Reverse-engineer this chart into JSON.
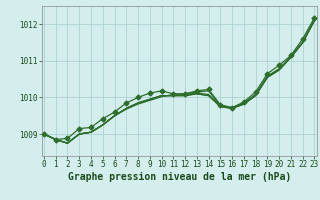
{
  "title": "Graphe pression niveau de la mer (hPa)",
  "background_color": "#d4eeed",
  "grid_color": "#a8cccc",
  "line_color": "#2d6e2d",
  "ylabel_ticks": [
    1009,
    1010,
    1011,
    1012
  ],
  "xlabel_ticks": [
    0,
    1,
    2,
    3,
    4,
    5,
    6,
    7,
    8,
    9,
    10,
    11,
    12,
    13,
    14,
    15,
    16,
    17,
    18,
    19,
    20,
    21,
    22,
    23
  ],
  "xlim": [
    -0.2,
    23.2
  ],
  "ylim": [
    1008.4,
    1012.5
  ],
  "series": [
    [
      1009.0,
      1008.85,
      1008.75,
      1009.0,
      1009.05,
      1009.25,
      1009.5,
      1009.7,
      1009.85,
      1009.95,
      1010.05,
      1010.05,
      1010.05,
      1010.1,
      1010.05,
      1009.75,
      1009.7,
      1009.82,
      1010.05,
      1010.55,
      1010.75,
      1011.1,
      1011.5,
      1012.1
    ],
    [
      1009.0,
      1008.85,
      1008.75,
      1009.0,
      1009.05,
      1009.25,
      1009.5,
      1009.7,
      1009.85,
      1009.95,
      1010.05,
      1010.05,
      1010.05,
      1010.1,
      1010.05,
      1009.75,
      1009.7,
      1009.82,
      1010.05,
      1010.55,
      1010.75,
      1011.1,
      1011.5,
      1012.12
    ],
    [
      1009.0,
      1008.85,
      1008.75,
      1009.0,
      1009.05,
      1009.25,
      1009.5,
      1009.7,
      1009.85,
      1009.95,
      1010.05,
      1010.05,
      1010.08,
      1010.12,
      1010.08,
      1009.78,
      1009.72,
      1009.85,
      1010.08,
      1010.58,
      1010.78,
      1011.12,
      1011.52,
      1012.12
    ],
    [
      1009.0,
      1008.85,
      1008.75,
      1009.0,
      1009.05,
      1009.25,
      1009.5,
      1009.68,
      1009.82,
      1009.92,
      1010.02,
      1010.08,
      1010.1,
      1010.15,
      1010.18,
      1009.78,
      1009.72,
      1009.82,
      1010.08,
      1010.58,
      1010.78,
      1011.1,
      1011.5,
      1012.1
    ]
  ],
  "diverging_series": [
    1009.0,
    1008.85,
    1008.88,
    1009.15,
    1009.18,
    1009.42,
    1009.6,
    1009.85,
    1010.0,
    1010.12,
    1010.18,
    1010.1,
    1010.1,
    1010.18,
    1010.22,
    1009.8,
    1009.72,
    1009.88,
    1010.15,
    1010.65,
    1010.88,
    1011.15,
    1011.6,
    1012.18
  ],
  "marker_style": "D",
  "marker_size": 2.5,
  "linewidth": 0.9,
  "title_fontsize": 7,
  "tick_fontsize": 5.5,
  "title_color": "#1a4a1a",
  "tick_color": "#1a4a1a"
}
